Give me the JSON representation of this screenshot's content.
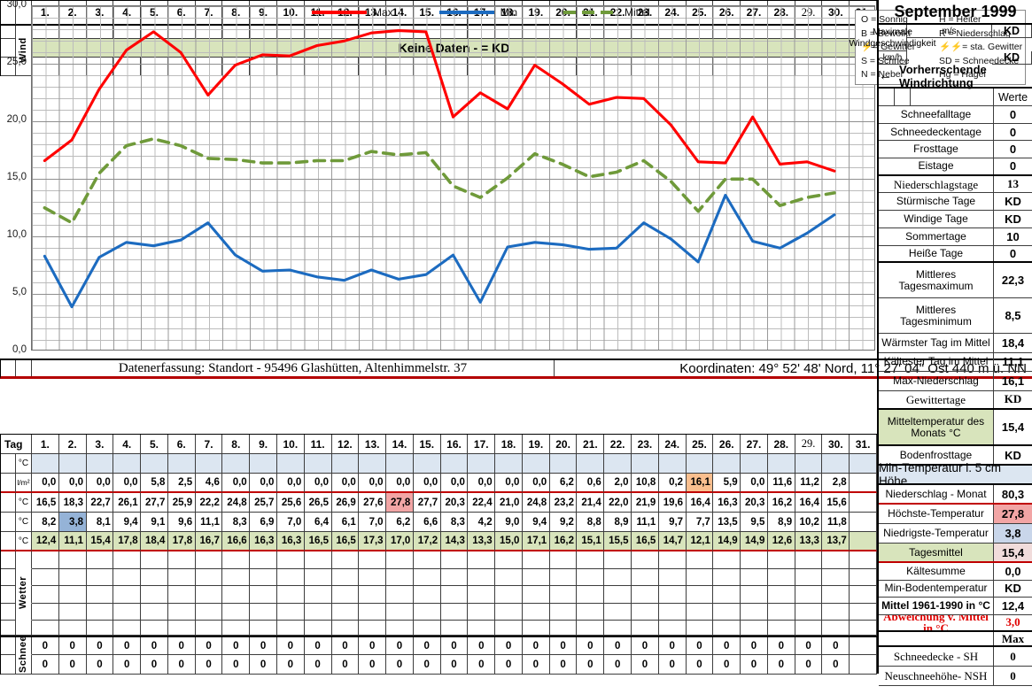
{
  "title": "September 1999",
  "colors": {
    "max_line": "#ff0000",
    "min_line": "#1c6bc0",
    "mittel_line": "#6f9a3a",
    "green_bg": "#d8e4bc",
    "blue_bg": "#dce6f1",
    "highlight_blue": "#95b3d7",
    "highlight_pink": "#f2a5a5",
    "highlight_orange": "#fabf8f",
    "red_line": "#c00000"
  },
  "wind": {
    "section_label": "Wind",
    "no_data_banner": "Keine Daten -  = KD",
    "unit_ms": "m/s",
    "unit_kmh": "km/h",
    "max_label": "Maximale Windgeschwindigkeit",
    "max_value_ms": "KD",
    "max_value_kmh": "KD",
    "arrow": "←",
    "direction_label": "Vorherrschende Windrichtung"
  },
  "days": [
    "1.",
    "2.",
    "3.",
    "4.",
    "5.",
    "6.",
    "7.",
    "8.",
    "9.",
    "10.",
    "11.",
    "12.",
    "13.",
    "14.",
    "15.",
    "16.",
    "17.",
    "18.",
    "19.",
    "20.",
    "21.",
    "22.",
    "23.",
    "24.",
    "25.",
    "26.",
    "27.",
    "28.",
    "29.",
    "30.",
    "31."
  ],
  "chart_data": {
    "type": "line",
    "title": "",
    "xlabel": "",
    "ylabel": "",
    "x": [
      1,
      2,
      3,
      4,
      5,
      6,
      7,
      8,
      9,
      10,
      11,
      12,
      13,
      14,
      15,
      16,
      17,
      18,
      19,
      20,
      21,
      22,
      23,
      24,
      25,
      26,
      27,
      28,
      29,
      30
    ],
    "ylim": [
      0,
      30
    ],
    "yticks": [
      "30,0",
      "25,0",
      "20,0",
      "15,0",
      "10,0",
      "5,0",
      "0,0"
    ],
    "grid": true,
    "legend_position": "top-center",
    "series": [
      {
        "name": "Max",
        "color": "#ff0000",
        "dash": false,
        "values": [
          16.5,
          18.3,
          22.7,
          26.1,
          27.7,
          25.9,
          22.2,
          24.8,
          25.7,
          25.6,
          26.5,
          26.9,
          27.6,
          27.8,
          27.7,
          20.3,
          22.4,
          21.0,
          24.8,
          23.2,
          21.4,
          22.0,
          21.9,
          19.6,
          16.4,
          16.3,
          20.3,
          16.2,
          16.4,
          15.6
        ]
      },
      {
        "name": "Min",
        "color": "#1c6bc0",
        "dash": false,
        "values": [
          8.2,
          3.8,
          8.1,
          9.4,
          9.1,
          9.6,
          11.1,
          8.3,
          6.9,
          7.0,
          6.4,
          6.1,
          7.0,
          6.2,
          6.6,
          8.3,
          4.2,
          9.0,
          9.4,
          9.2,
          8.8,
          8.9,
          11.1,
          9.7,
          7.7,
          13.5,
          9.5,
          8.9,
          10.2,
          11.8
        ]
      },
      {
        "name": "Mittel",
        "color": "#6f9a3a",
        "dash": true,
        "values": [
          12.4,
          11.1,
          15.4,
          17.8,
          18.4,
          17.8,
          16.7,
          16.6,
          16.3,
          16.3,
          16.5,
          16.5,
          17.3,
          17.0,
          17.2,
          14.3,
          13.3,
          15.0,
          17.1,
          16.2,
          15.1,
          15.5,
          16.5,
          14.7,
          12.1,
          14.9,
          14.9,
          12.6,
          13.3,
          13.7
        ]
      }
    ]
  },
  "codes": [
    {
      "code": "O",
      "label": "Sonnig",
      "bolt": 0
    },
    {
      "code": "H",
      "label": "Heiter",
      "bolt": 0
    },
    {
      "code": "B",
      "label": "Bewölkt",
      "bolt": 0
    },
    {
      "code": "R",
      "label": "Niederschlag",
      "bolt": 0
    },
    {
      "code": "⚡",
      "label": "Gewitter",
      "bolt": 1
    },
    {
      "code": "⚡⚡",
      "label": "sta. Gewitter",
      "bolt": 2
    },
    {
      "code": "S",
      "label": "Schnee",
      "bolt": 0
    },
    {
      "code": "SD",
      "label": "Schneedecke",
      "bolt": 0
    },
    {
      "code": "N",
      "label": "Nebel",
      "bolt": 0
    },
    {
      "code": "Hg",
      "label": "Hagel",
      "bolt": 0
    }
  ],
  "table": {
    "tag_label": "Tag",
    "wetter_label": "Wetter",
    "schnee_label": "Schnee",
    "rows": {
      "soil_unit": "°C",
      "soil": [
        "",
        "",
        "",
        "",
        "",
        "",
        "",
        "",
        "",
        "",
        "",
        "",
        "",
        "",
        "",
        "",
        "",
        "",
        "",
        "",
        "",
        "",
        "",
        "",
        "",
        "",
        "",
        "",
        "",
        "",
        ""
      ],
      "precip_unit": "l/m²",
      "precip": [
        "0,0",
        "0,0",
        "0,0",
        "0,0",
        "5,8",
        "2,5",
        "4,6",
        "0,0",
        "0,0",
        "0,0",
        "0,0",
        "0,0",
        "0,0",
        "0,0",
        "0,0",
        "0,0",
        "0,0",
        "0,0",
        "0,0",
        "6,2",
        "0,6",
        "2,0",
        "10,8",
        "0,2",
        "16,1",
        "5,9",
        "0,0",
        "11,6",
        "11,2",
        "2,8",
        ""
      ],
      "max_unit": "°C",
      "max": [
        "16,5",
        "18,3",
        "22,7",
        "26,1",
        "27,7",
        "25,9",
        "22,2",
        "24,8",
        "25,7",
        "25,6",
        "26,5",
        "26,9",
        "27,6",
        "27,8",
        "27,7",
        "20,3",
        "22,4",
        "21,0",
        "24,8",
        "23,2",
        "21,4",
        "22,0",
        "21,9",
        "19,6",
        "16,4",
        "16,3",
        "20,3",
        "16,2",
        "16,4",
        "15,6",
        ""
      ],
      "min_unit": "°C",
      "min": [
        "8,2",
        "3,8",
        "8,1",
        "9,4",
        "9,1",
        "9,6",
        "11,1",
        "8,3",
        "6,9",
        "7,0",
        "6,4",
        "6,1",
        "7,0",
        "6,2",
        "6,6",
        "8,3",
        "4,2",
        "9,0",
        "9,4",
        "9,2",
        "8,8",
        "8,9",
        "11,1",
        "9,7",
        "7,7",
        "13,5",
        "9,5",
        "8,9",
        "10,2",
        "11,8",
        ""
      ],
      "mean_unit": "°C",
      "mean": [
        "12,4",
        "11,1",
        "15,4",
        "17,8",
        "18,4",
        "17,8",
        "16,7",
        "16,6",
        "16,3",
        "16,3",
        "16,5",
        "16,5",
        "17,3",
        "17,0",
        "17,2",
        "14,3",
        "13,3",
        "15,0",
        "17,1",
        "16,2",
        "15,1",
        "15,5",
        "16,5",
        "14,7",
        "12,1",
        "14,9",
        "14,9",
        "12,6",
        "13,3",
        "13,7",
        ""
      ],
      "snow1": [
        "0",
        "0",
        "0",
        "0",
        "0",
        "0",
        "0",
        "0",
        "0",
        "0",
        "0",
        "0",
        "0",
        "0",
        "0",
        "0",
        "0",
        "0",
        "0",
        "0",
        "0",
        "0",
        "0",
        "0",
        "0",
        "0",
        "0",
        "0",
        "0",
        "0",
        ""
      ],
      "snow2": [
        "0",
        "0",
        "0",
        "0",
        "0",
        "0",
        "0",
        "0",
        "0",
        "0",
        "0",
        "0",
        "0",
        "0",
        "0",
        "0",
        "0",
        "0",
        "0",
        "0",
        "0",
        "0",
        "0",
        "0",
        "0",
        "0",
        "0",
        "0",
        "0",
        "0",
        ""
      ]
    },
    "highlights": {
      "min_day_index": 1,
      "max_day_index": 13,
      "precip_day_index": 24
    }
  },
  "right_panel": {
    "werte_header": "Werte",
    "rows": [
      {
        "label": "Schneefalltage",
        "value": "0",
        "cls": "sm"
      },
      {
        "label": "Schneedeckentage",
        "value": "0",
        "cls": "sm"
      },
      {
        "label": "Frosttage",
        "value": "0",
        "cls": "sm"
      },
      {
        "label": "Eistage",
        "value": "0",
        "cls": "sm thickb"
      },
      {
        "label": "Niederschlagstage",
        "value": "13",
        "cls": "sm serifrow"
      },
      {
        "label": "Stürmische Tage",
        "value": "KD",
        "cls": "sm"
      },
      {
        "label": "Windige Tage",
        "value": "KD",
        "cls": "sm"
      },
      {
        "label": "Sommertage",
        "value": "10",
        "cls": "sm"
      },
      {
        "label": "Heiße Tage",
        "value": "0",
        "cls": "sm thickb"
      },
      {
        "label": "Mittleres Tagesmaximum",
        "value": "22,3",
        "cls": "lg"
      },
      {
        "label": "Mittleres Tagesminimum",
        "value": "8,5",
        "cls": "lg"
      },
      {
        "label": "Wärmster Tag im Mittel",
        "value": "18,4",
        "cls": "md"
      },
      {
        "label": "Kältester Tag im Mittel",
        "value": "11,1",
        "cls": "md"
      },
      {
        "label": "Max-Niederschlag",
        "value": "16,1",
        "cls": "md"
      },
      {
        "label": "Gewittertage",
        "value": "KD",
        "cls": "md serifrow thickb"
      },
      {
        "label": "Mitteltemperatur des Monats °C",
        "value": "15,4",
        "cls": "xl green-label thickb"
      },
      {
        "label": "Bodenfrosttage",
        "value": "KD",
        "cls": "r22 thickb"
      },
      {
        "label": "Min-Temperatur i. 5 cm Höhe",
        "value": "",
        "cls": "r22 full thickb"
      },
      {
        "label": "Niederschlag - Monat",
        "value": "80,3",
        "cls": "r22 redline"
      },
      {
        "label": "Höchste-Temperatur",
        "value": "27,8",
        "cls": "r22 pink-val"
      },
      {
        "label": "Niedrigste-Temperatur",
        "value": "3,8",
        "cls": "r22 blue-val"
      },
      {
        "label": "Tagesmittel",
        "value": "15,4",
        "cls": "r22 green-label lightpink-val redline"
      },
      {
        "label": "Kältesumme",
        "value": "0,0",
        "cls": "w"
      },
      {
        "label": "Min-Bodentemperatur",
        "value": "KD",
        "cls": "w"
      },
      {
        "label": "Mittel 1961-1990 in °C",
        "value": "12,4",
        "cls": "w bold-label"
      },
      {
        "label": "Abweichung v. Mittel in °C",
        "value": "3,0",
        "cls": "w serifrow redrow thickb"
      },
      {
        "label": "",
        "value": "Max",
        "cls": "mx serifrow bold-val thickb"
      },
      {
        "label": "Schneedecke -   SH",
        "value": "0",
        "cls": "r22 serifrow"
      },
      {
        "label": "Neuschneehöhe- NSH",
        "value": "0",
        "cls": "r22 serifrow"
      }
    ]
  },
  "footer": {
    "left": "Datenerfassung:  Standort -  95496  Glashütten, Altenhimmelstr. 37",
    "right": "Koordinaten:  49° 52' 48' Nord,   11° 27' 04\" Ost   440 m ü. NN"
  }
}
